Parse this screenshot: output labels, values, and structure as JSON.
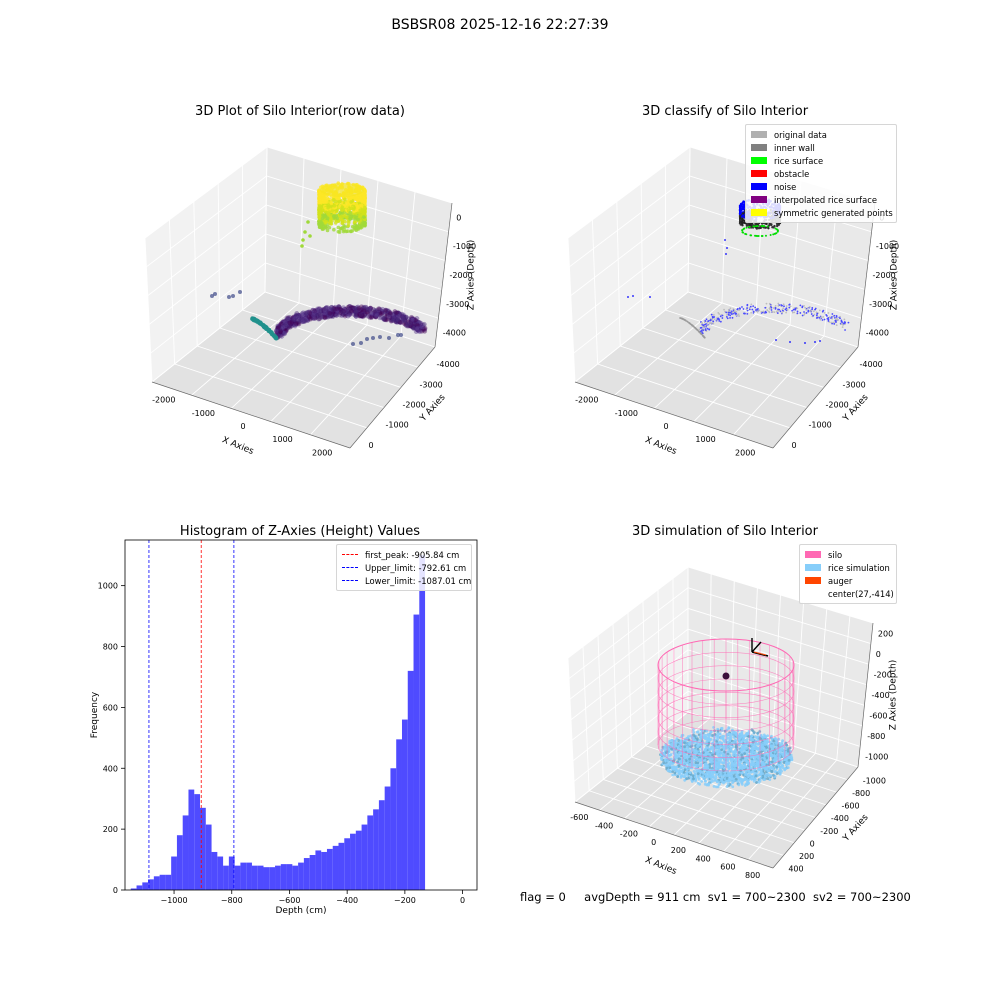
{
  "suptitle": "BSBSR08 2025-12-16 22:27:39",
  "status": {
    "flag": "flag = 0",
    "avg_depth": "avgDepth = 911 cm",
    "sv1": "sv1 = 700~2300",
    "sv2": "sv2 = 700~2300"
  },
  "colors": {
    "hist_bar": "#4f4bff",
    "peak_line": "#ff0000",
    "upper_line": "#0000ff",
    "lower_line": "#0000ff",
    "silo": "#ff69b4",
    "rice_simulation": "#87cefa",
    "auger": "#ff4500"
  },
  "chart_data": [
    {
      "type": "scatter",
      "projection": "3d",
      "title": "3D Plot of Silo Interior(row data)",
      "xlabel": "X Axies",
      "ylabel": "Y Axies",
      "zlabel": "Z Axies (Depth)",
      "x_ticks": [
        "-2000",
        "-1000",
        "0",
        "1000",
        "2000"
      ],
      "y_ticks": [
        "0",
        "-1000",
        "-2000",
        "-3000",
        "-4000"
      ],
      "z_ticks": [
        "0",
        "-1000",
        "-2000",
        "-3000",
        "-4000"
      ],
      "colormap": "viridis",
      "grid": true
    },
    {
      "type": "scatter",
      "projection": "3d",
      "title": "3D classify of Silo Interior",
      "xlabel": "X Axies",
      "ylabel": "Y Axies",
      "zlabel": "Z Axies (Depth)",
      "x_ticks": [
        "-2000",
        "-1000",
        "0",
        "1000",
        "2000"
      ],
      "y_ticks": [
        "0",
        "-1000",
        "-2000",
        "-3000",
        "-4000"
      ],
      "z_ticks": [
        "0",
        "-1000",
        "-2000",
        "-3000",
        "-4000"
      ],
      "legend_position": "top-right",
      "legend": [
        {
          "label": "original data",
          "color": "#b0b0b0"
        },
        {
          "label": "inner wall",
          "color": "#808080"
        },
        {
          "label": "rice surface",
          "color": "#00ff00"
        },
        {
          "label": "obstacle",
          "color": "#ff0000"
        },
        {
          "label": "noise",
          "color": "#0000ff"
        },
        {
          "label": "interpolated rice surface",
          "color": "#800080"
        },
        {
          "label": "symmetric generated points",
          "color": "#ffff00"
        }
      ],
      "grid": true
    },
    {
      "type": "bar",
      "title": "Histogram of Z-Axies (Height) Values",
      "xlabel": "Depth (cm)",
      "ylabel": "Frequency",
      "xlim": [
        -1170,
        50
      ],
      "ylim": [
        0,
        1150
      ],
      "x_ticks": [
        -1000,
        -800,
        -600,
        -400,
        -200,
        0
      ],
      "y_ticks": [
        0,
        200,
        400,
        600,
        800,
        1000
      ],
      "bin_start": -1150,
      "bin_width": 20,
      "values": [
        5,
        15,
        25,
        35,
        45,
        50,
        50,
        110,
        180,
        245,
        330,
        315,
        270,
        215,
        125,
        110,
        80,
        110,
        80,
        90,
        90,
        80,
        80,
        75,
        75,
        80,
        85,
        85,
        80,
        90,
        105,
        115,
        130,
        125,
        135,
        145,
        155,
        170,
        185,
        195,
        215,
        245,
        265,
        295,
        340,
        400,
        495,
        560,
        720,
        905,
        1100
      ],
      "vlines": [
        {
          "x": -905.84,
          "style": "dashed",
          "color": "#ff0000",
          "label": "first_peak: -905.84 cm"
        },
        {
          "x": -792.61,
          "style": "dashed",
          "color": "#0000ff",
          "label": "Upper_limit: -792.61 cm"
        },
        {
          "x": -1087.01,
          "style": "dashed",
          "color": "#0000ff",
          "label": "Lower_limit: -1087.01 cm"
        }
      ],
      "legend_position": "top-right"
    },
    {
      "type": "scatter",
      "projection": "3d",
      "title": "3D simulation of Silo Interior",
      "xlabel": "X Axies",
      "ylabel": "Y Axies",
      "zlabel": "Z Axies (Depth)",
      "x_ticks": [
        "-600",
        "-400",
        "-200",
        "0",
        "200",
        "400",
        "600",
        "800"
      ],
      "y_ticks": [
        "400",
        "200",
        "0",
        "-200",
        "-400",
        "-600",
        "-800",
        "-1000"
      ],
      "z_ticks": [
        "200",
        "0",
        "-200",
        "-400",
        "-600",
        "-800",
        "-1000"
      ],
      "legend_position": "top-right",
      "legend": [
        {
          "label": "silo",
          "color": "#ff69b4"
        },
        {
          "label": "rice simulation",
          "color": "#87cefa"
        },
        {
          "label": "auger",
          "color": "#ff4500"
        },
        {
          "label": "center(27,-414)",
          "color": ""
        }
      ],
      "grid": true
    }
  ]
}
